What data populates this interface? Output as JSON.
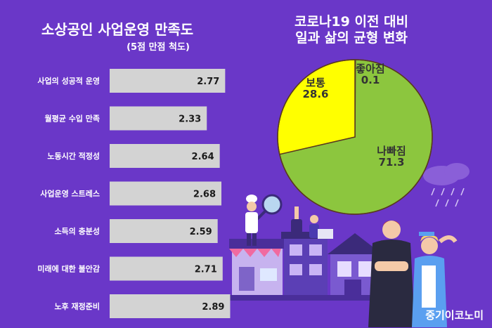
{
  "left_chart": {
    "title": "소상공인 사업운영 만족도",
    "subtitle": "(5점 만점 척도)"
  },
  "right_chart": {
    "title_line1": "코로나19 이전 대비",
    "title_line2": "일과 삶의 균형 변화"
  },
  "watermark": "중기이코노미",
  "colors": {
    "background": "#6a37c8",
    "bar": "#d3d3d3",
    "pie_worse": "#8cc63e",
    "pie_same": "#ffff00",
    "pie_better": "#8cc63e"
  },
  "chart_data": [
    {
      "type": "bar",
      "orientation": "horizontal",
      "title": "소상공인 사업운영 만족도",
      "subtitle": "(5점 만점 척도)",
      "categories": [
        "사업의 성공적 운영",
        "월평균 수입 만족",
        "노동시간 적정성",
        "사업운영 스트레스",
        "소득의 충분성",
        "미래에 대한 불안감",
        "노후 재정준비"
      ],
      "values": [
        2.77,
        2.33,
        2.64,
        2.68,
        2.59,
        2.71,
        2.89
      ],
      "xlim": [
        0,
        3
      ]
    },
    {
      "type": "pie",
      "title": "코로나19 이전 대비 일과 삶의 균형 변화",
      "slices": [
        {
          "label": "좋아짐",
          "value": 0.1
        },
        {
          "label": "나빠짐",
          "value": 71.3
        },
        {
          "label": "보통",
          "value": 28.6
        }
      ]
    }
  ]
}
